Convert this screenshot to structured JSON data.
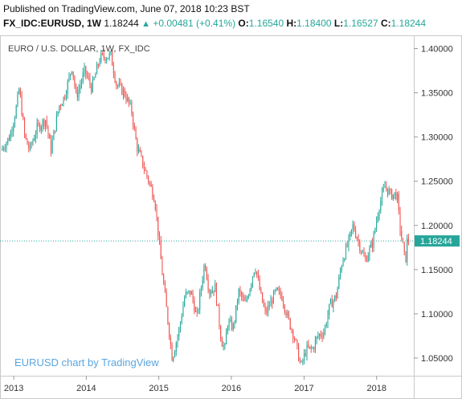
{
  "header": {
    "published": "Published on TradingView.com, June 07, 2018 10:23 BST",
    "symbol": "FX_IDC:EURUSD, 1W",
    "last": "1.18244",
    "arrow": "▲",
    "change": "+0.00481 (+0.41%)",
    "open_label": "O:",
    "open": "1.16540",
    "high_label": "H:",
    "high": "1.18400",
    "low_label": "L:",
    "low": "1.16527",
    "close_label": "C:",
    "close": "1.18244"
  },
  "chart_data": {
    "type": "candlestick",
    "title": "EURO / U.S. DOLLAR, 1W, FX_IDC",
    "watermark": "EURUSD chart by TradingView",
    "colors": {
      "up": "#26a69a",
      "down": "#ef5350",
      "price_line": "#26a69a",
      "axis_text": "#333333"
    },
    "ylim": [
      1.03,
      1.415
    ],
    "y_ticks": [
      1.05,
      1.1,
      1.15,
      1.2,
      1.25,
      1.3,
      1.35,
      1.4
    ],
    "y_tick_labels": [
      "1.05000",
      "1.10000",
      "1.15000",
      "1.20000",
      "1.25000",
      "1.30000",
      "1.35000",
      "1.40000"
    ],
    "x_start": "2012-11-01",
    "x_end": "2018-06-25",
    "x_ticks": [
      {
        "date": "2013-01-01",
        "label": "2013"
      },
      {
        "date": "2014-01-01",
        "label": "2014"
      },
      {
        "date": "2015-01-01",
        "label": "2015"
      },
      {
        "date": "2016-01-01",
        "label": "2016"
      },
      {
        "date": "2017-01-01",
        "label": "2017"
      },
      {
        "date": "2018-01-01",
        "label": "2018"
      }
    ],
    "last_price": 1.18244,
    "last_price_label": "1.18244",
    "path_anchors": [
      [
        "2012-11-01",
        1.285
      ],
      [
        "2012-12-15",
        1.3
      ],
      [
        "2013-01-15",
        1.33
      ],
      [
        "2013-02-01",
        1.355
      ],
      [
        "2013-03-01",
        1.3
      ],
      [
        "2013-03-25",
        1.285
      ],
      [
        "2013-05-01",
        1.31
      ],
      [
        "2013-06-15",
        1.32
      ],
      [
        "2013-07-10",
        1.285
      ],
      [
        "2013-08-20",
        1.335
      ],
      [
        "2013-09-15",
        1.345
      ],
      [
        "2013-10-25",
        1.38
      ],
      [
        "2013-11-15",
        1.345
      ],
      [
        "2013-12-27",
        1.375
      ],
      [
        "2014-02-01",
        1.355
      ],
      [
        "2014-03-15",
        1.39
      ],
      [
        "2014-05-08",
        1.392
      ],
      [
        "2014-06-05",
        1.36
      ],
      [
        "2014-07-15",
        1.35
      ],
      [
        "2014-08-20",
        1.33
      ],
      [
        "2014-09-15",
        1.29
      ],
      [
        "2014-10-15",
        1.27
      ],
      [
        "2014-11-15",
        1.25
      ],
      [
        "2014-12-15",
        1.23
      ],
      [
        "2015-01-20",
        1.15
      ],
      [
        "2015-03-13",
        1.05
      ],
      [
        "2015-04-15",
        1.08
      ],
      [
        "2015-05-15",
        1.12
      ],
      [
        "2015-06-15",
        1.125
      ],
      [
        "2015-07-15",
        1.095
      ],
      [
        "2015-08-24",
        1.16
      ],
      [
        "2015-09-15",
        1.125
      ],
      [
        "2015-10-15",
        1.13
      ],
      [
        "2015-11-15",
        1.07
      ],
      [
        "2015-12-03",
        1.06
      ],
      [
        "2015-12-15",
        1.09
      ],
      [
        "2016-01-15",
        1.085
      ],
      [
        "2016-02-11",
        1.125
      ],
      [
        "2016-03-15",
        1.11
      ],
      [
        "2016-05-03",
        1.155
      ],
      [
        "2016-06-01",
        1.12
      ],
      [
        "2016-06-24",
        1.1
      ],
      [
        "2016-08-15",
        1.125
      ],
      [
        "2016-09-15",
        1.12
      ],
      [
        "2016-10-15",
        1.095
      ],
      [
        "2016-11-15",
        1.075
      ],
      [
        "2016-12-20",
        1.04
      ],
      [
        "2017-01-15",
        1.06
      ],
      [
        "2017-02-15",
        1.06
      ],
      [
        "2017-03-15",
        1.075
      ],
      [
        "2017-04-15",
        1.08
      ],
      [
        "2017-05-15",
        1.11
      ],
      [
        "2017-06-15",
        1.12
      ],
      [
        "2017-07-15",
        1.16
      ],
      [
        "2017-08-15",
        1.18
      ],
      [
        "2017-09-08",
        1.2
      ],
      [
        "2017-10-15",
        1.175
      ],
      [
        "2017-11-07",
        1.16
      ],
      [
        "2017-12-15",
        1.18
      ],
      [
        "2018-01-15",
        1.22
      ],
      [
        "2018-02-16",
        1.245
      ],
      [
        "2018-03-15",
        1.235
      ],
      [
        "2018-04-17",
        1.235
      ],
      [
        "2018-05-01",
        1.2
      ],
      [
        "2018-05-29",
        1.158
      ],
      [
        "2018-06-07",
        1.182
      ]
    ]
  }
}
